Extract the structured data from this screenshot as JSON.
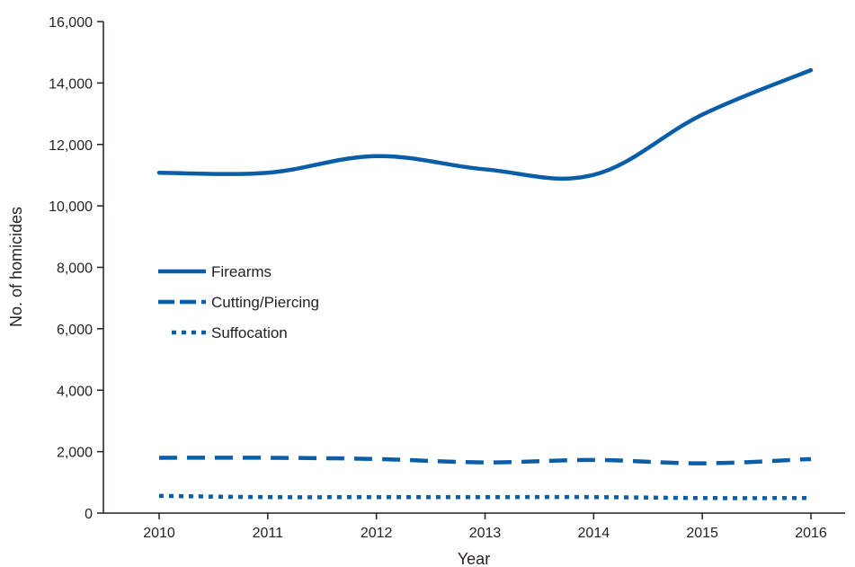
{
  "chart_data": {
    "type": "line",
    "xlabel": "Year",
    "ylabel": "No. of homicides",
    "x": [
      2010,
      2011,
      2012,
      2013,
      2014,
      2015,
      2016
    ],
    "ylim": [
      0,
      16000
    ],
    "y_ticks": [
      0,
      2000,
      4000,
      6000,
      8000,
      10000,
      12000,
      14000,
      16000
    ],
    "y_tick_labels": [
      "0",
      "2,000",
      "4,000",
      "6,000",
      "8,000",
      "10,000",
      "12,000",
      "14,000",
      "16,000"
    ],
    "x_tick_labels": [
      "2010",
      "2011",
      "2012",
      "2013",
      "2014",
      "2015",
      "2016"
    ],
    "grid": false,
    "legend_position": "center-left",
    "line_color": "#0a5ea8",
    "series": [
      {
        "name": "Firearms",
        "style": "solid",
        "values": [
          11080,
          11080,
          11620,
          11190,
          11010,
          12970,
          14420
        ]
      },
      {
        "name": "Cutting/Piercing",
        "style": "dashed",
        "values": [
          1800,
          1800,
          1760,
          1650,
          1730,
          1620,
          1760
        ]
      },
      {
        "name": "Suffocation",
        "style": "dotted",
        "values": [
          560,
          520,
          520,
          520,
          520,
          490,
          490
        ]
      }
    ]
  }
}
